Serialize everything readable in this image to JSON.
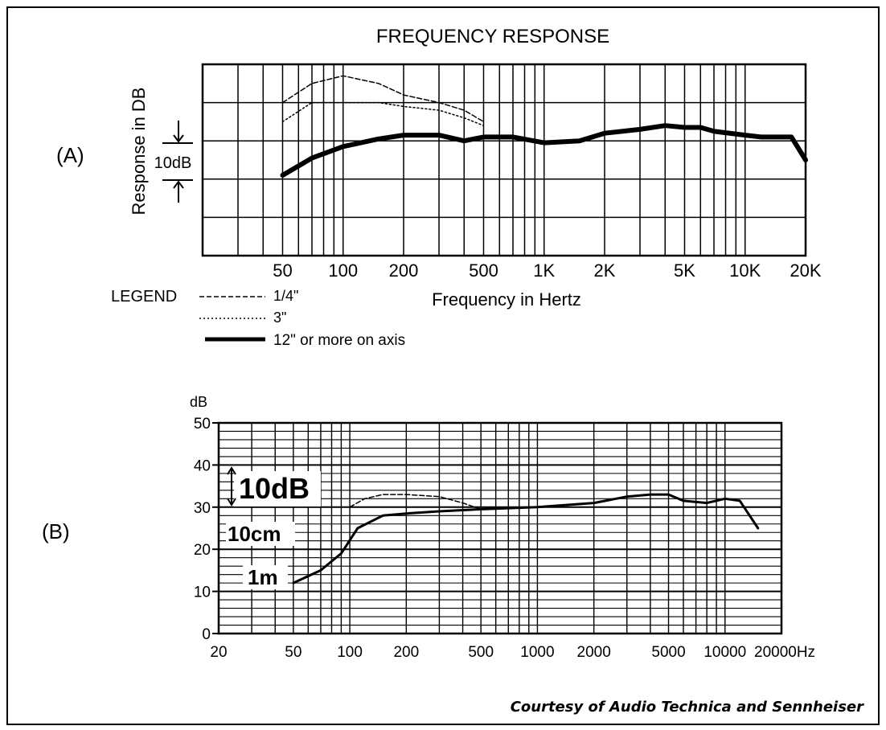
{
  "chart_data": [
    {
      "type": "line",
      "panel_label": "(A)",
      "title": "FREQUENCY RESPONSE",
      "xlabel": "Frequency in Hertz",
      "ylabel": "Response in DB",
      "x_scale": "log",
      "xlim": [
        20,
        20000
      ],
      "ylim": [
        -30,
        20
      ],
      "grid": true,
      "scale_marker": "10dB",
      "x_ticks": [
        {
          "value": 50,
          "label": "50"
        },
        {
          "value": 100,
          "label": "100"
        },
        {
          "value": 200,
          "label": "200"
        },
        {
          "value": 500,
          "label": "500"
        },
        {
          "value": 1000,
          "label": "1K"
        },
        {
          "value": 2000,
          "label": "2K"
        },
        {
          "value": 5000,
          "label": "5K"
        },
        {
          "value": 10000,
          "label": "10K"
        },
        {
          "value": 20000,
          "label": "20K"
        }
      ],
      "legend_title": "LEGEND",
      "series": [
        {
          "name": "1/4\"",
          "style": "dashed",
          "x": [
            50,
            70,
            100,
            150,
            200,
            300,
            400,
            500
          ],
          "y": [
            10,
            15,
            17,
            15,
            12,
            10,
            8,
            5
          ]
        },
        {
          "name": "3\"",
          "style": "dotted",
          "x": [
            50,
            70,
            100,
            150,
            200,
            300,
            400,
            500
          ],
          "y": [
            5,
            10,
            10,
            10,
            9,
            8,
            6,
            4
          ]
        },
        {
          "name": "12\" or more on axis",
          "style": "thick",
          "x": [
            50,
            70,
            100,
            150,
            200,
            300,
            400,
            500,
            700,
            1000,
            1500,
            2000,
            3000,
            4000,
            5000,
            6000,
            7000,
            10000,
            12000,
            15000,
            17000,
            20000
          ],
          "y": [
            -9,
            -4.5,
            -1.5,
            0.5,
            1.5,
            1.5,
            0,
            1,
            1,
            -0.5,
            0,
            2,
            3,
            4,
            3.5,
            3.5,
            2.5,
            1.5,
            1,
            1,
            1,
            -5
          ]
        }
      ]
    },
    {
      "type": "line",
      "panel_label": "(B)",
      "ylabel": "dB",
      "x_scale": "log",
      "xlim": [
        20,
        20000
      ],
      "ylim": [
        0,
        50
      ],
      "grid": true,
      "scale_marker": "10dB",
      "y_ticks": [
        0,
        10,
        20,
        30,
        40,
        50
      ],
      "x_ticks": [
        {
          "value": 20,
          "label": "20"
        },
        {
          "value": 50,
          "label": "50"
        },
        {
          "value": 100,
          "label": "100"
        },
        {
          "value": 200,
          "label": "200"
        },
        {
          "value": 500,
          "label": "500"
        },
        {
          "value": 1000,
          "label": "1000"
        },
        {
          "value": 2000,
          "label": "2000"
        },
        {
          "value": 5000,
          "label": "5000"
        },
        {
          "value": 10000,
          "label": "10000"
        },
        {
          "value": 20000,
          "label": "20000Hz"
        }
      ],
      "series": [
        {
          "name": "10cm",
          "style": "dashed",
          "x": [
            100,
            120,
            150,
            200,
            300,
            400,
            500
          ],
          "y": [
            30,
            32,
            33,
            33,
            32.5,
            31,
            29.5
          ]
        },
        {
          "name": "1m",
          "style": "solid",
          "x": [
            50,
            70,
            90,
            110,
            150,
            200,
            300,
            500,
            1000,
            2000,
            3000,
            4000,
            5000,
            6000,
            8000,
            10000,
            12000,
            15000
          ],
          "y": [
            12,
            15,
            19,
            25,
            28,
            28.5,
            29,
            29.5,
            30,
            31,
            32.5,
            33,
            33,
            31.5,
            31,
            32,
            31.5,
            25
          ]
        }
      ]
    }
  ],
  "panel_b_labels": {
    "ten_cm": "10cm",
    "one_m": "1m"
  },
  "courtesy": "Courtesy of Audio Technica and Sennheiser"
}
